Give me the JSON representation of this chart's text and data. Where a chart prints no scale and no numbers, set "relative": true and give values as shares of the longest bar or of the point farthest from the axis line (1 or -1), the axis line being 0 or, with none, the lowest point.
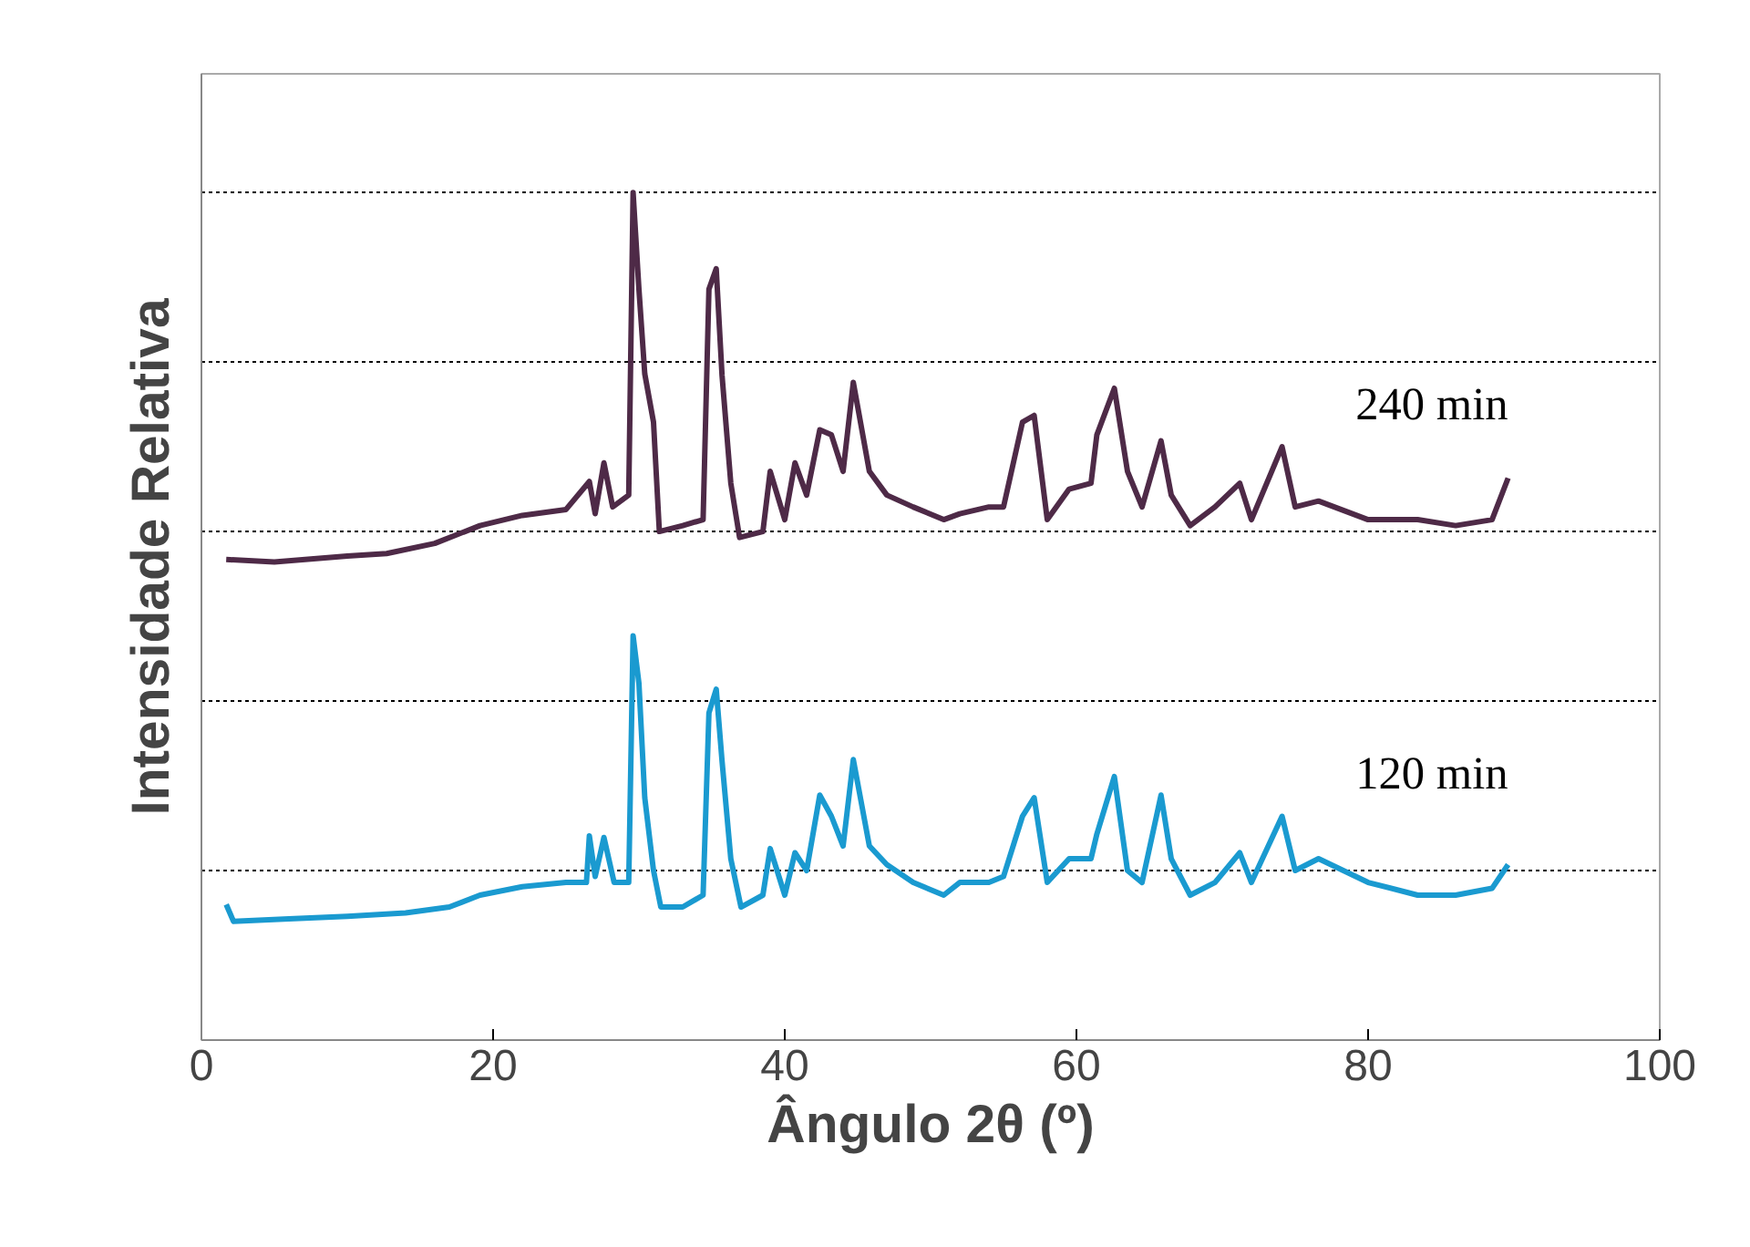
{
  "chart_data": {
    "type": "line",
    "xlabel": "Ângulo 2θ (º)",
    "ylabel": "Intensidade Relativa",
    "relative": true,
    "xlim": [
      0,
      100
    ],
    "xticks": [
      0,
      20,
      40,
      60,
      80,
      100
    ],
    "grid": "y",
    "tick_labels": "x",
    "marker": "none",
    "line_style": "solid",
    "series": [
      {
        "name": "240 min",
        "color": "#4e2a47",
        "x": [
          1.7,
          5,
          10,
          12.7,
          16,
          19.1,
          22,
          25,
          26.6,
          27,
          27.6,
          28.2,
          29.3,
          29.6,
          30.0,
          30.4,
          31.0,
          31.4,
          33,
          34.4,
          34.8,
          35.3,
          35.7,
          36.3,
          36.9,
          38.5,
          39,
          40,
          40.7,
          41.5,
          42.4,
          43.2,
          44,
          44.7,
          45.8,
          47,
          48.8,
          50.9,
          52,
          54,
          55,
          56.3,
          57.1,
          58,
          59.5,
          61,
          61.4,
          62.6,
          63.5,
          64.5,
          65.8,
          66.5,
          67.8,
          69.5,
          71.2,
          72,
          74.1,
          75,
          76.6,
          80,
          83.4,
          86,
          88.5,
          89.6
        ],
        "values": [
          0.567,
          0.564,
          0.571,
          0.574,
          0.586,
          0.607,
          0.619,
          0.626,
          0.659,
          0.621,
          0.681,
          0.629,
          0.643,
          1,
          0.886,
          0.786,
          0.729,
          0.6,
          0.607,
          0.614,
          0.886,
          0.91,
          0.784,
          0.657,
          0.593,
          0.6,
          0.671,
          0.614,
          0.681,
          0.643,
          0.72,
          0.714,
          0.671,
          0.776,
          0.671,
          0.643,
          0.629,
          0.614,
          0.621,
          0.629,
          0.629,
          0.729,
          0.737,
          0.614,
          0.65,
          0.657,
          0.714,
          0.769,
          0.671,
          0.629,
          0.707,
          0.643,
          0.607,
          0.629,
          0.657,
          0.614,
          0.7,
          0.629,
          0.636,
          0.614,
          0.614,
          0.607,
          0.614,
          0.663
        ]
      },
      {
        "name": "120 min",
        "color": "#1a9ad0",
        "x": [
          1.7,
          2.2,
          6,
          10,
          14,
          17,
          19.1,
          22,
          25,
          26.4,
          26.6,
          27,
          27.6,
          28.3,
          29.3,
          29.6,
          30.0,
          30.4,
          31.0,
          31.5,
          33,
          34.4,
          34.8,
          35.3,
          35.7,
          36.3,
          37,
          38.5,
          39,
          40,
          40.7,
          41.5,
          42.4,
          43.2,
          44,
          44.7,
          45.8,
          47,
          48.8,
          50.9,
          52,
          54,
          55,
          56.3,
          57.1,
          58,
          59.5,
          61,
          61.4,
          62.6,
          63.5,
          64.5,
          65.8,
          66.5,
          67.8,
          69.5,
          71.2,
          72,
          74.1,
          75,
          76.6,
          80,
          83.4,
          86,
          88.5,
          89.6
        ],
        "values": [
          0.16,
          0.14,
          0.143,
          0.146,
          0.15,
          0.157,
          0.171,
          0.181,
          0.186,
          0.186,
          0.241,
          0.193,
          0.239,
          0.186,
          0.186,
          0.477,
          0.421,
          0.286,
          0.2,
          0.157,
          0.157,
          0.171,
          0.386,
          0.414,
          0.329,
          0.214,
          0.157,
          0.171,
          0.226,
          0.171,
          0.221,
          0.2,
          0.289,
          0.264,
          0.229,
          0.331,
          0.229,
          0.207,
          0.186,
          0.171,
          0.186,
          0.186,
          0.193,
          0.264,
          0.286,
          0.186,
          0.214,
          0.214,
          0.243,
          0.311,
          0.2,
          0.186,
          0.289,
          0.214,
          0.171,
          0.186,
          0.221,
          0.186,
          0.264,
          0.2,
          0.214,
          0.186,
          0.171,
          0.171,
          0.179,
          0.207
        ]
      }
    ]
  }
}
